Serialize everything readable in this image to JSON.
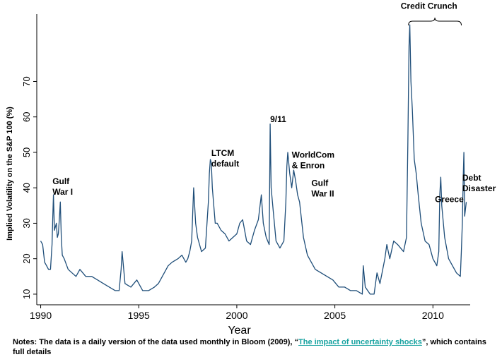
{
  "chart_data": {
    "type": "line",
    "title": "",
    "xlabel": "Year",
    "ylabel": "Implied Volatility on the S&P 100 (%)",
    "xlim": [
      1989.8,
      2011.9
    ],
    "ylim": [
      7,
      89
    ],
    "xticks": [
      1990,
      1995,
      2000,
      2005,
      2010
    ],
    "yticks": [
      10,
      20,
      30,
      40,
      50,
      60,
      70
    ],
    "grid": false,
    "series": [
      {
        "values": [
          [
            1990.0,
            25
          ],
          [
            1990.1,
            24
          ],
          [
            1990.2,
            19
          ],
          [
            1990.3,
            18
          ],
          [
            1990.4,
            17
          ],
          [
            1990.5,
            17
          ],
          [
            1990.58,
            24
          ],
          [
            1990.62,
            32
          ],
          [
            1990.65,
            38
          ],
          [
            1990.7,
            28
          ],
          [
            1990.8,
            30
          ],
          [
            1990.85,
            26
          ],
          [
            1990.9,
            27
          ],
          [
            1990.95,
            31
          ],
          [
            1991.0,
            36
          ],
          [
            1991.05,
            26
          ],
          [
            1991.1,
            21
          ],
          [
            1991.2,
            20
          ],
          [
            1991.4,
            17
          ],
          [
            1991.6,
            16
          ],
          [
            1991.8,
            15
          ],
          [
            1992.0,
            17
          ],
          [
            1992.3,
            15
          ],
          [
            1992.6,
            15
          ],
          [
            1992.9,
            14
          ],
          [
            1993.2,
            13
          ],
          [
            1993.5,
            12
          ],
          [
            1993.8,
            11
          ],
          [
            1994.0,
            11
          ],
          [
            1994.1,
            17
          ],
          [
            1994.15,
            22
          ],
          [
            1994.3,
            13
          ],
          [
            1994.6,
            12
          ],
          [
            1994.9,
            14
          ],
          [
            1995.2,
            11
          ],
          [
            1995.5,
            11
          ],
          [
            1995.8,
            12
          ],
          [
            1996.0,
            13
          ],
          [
            1996.3,
            16
          ],
          [
            1996.5,
            18
          ],
          [
            1996.7,
            19
          ],
          [
            1997.0,
            20
          ],
          [
            1997.2,
            21
          ],
          [
            1997.4,
            19
          ],
          [
            1997.5,
            20
          ],
          [
            1997.6,
            22
          ],
          [
            1997.7,
            25
          ],
          [
            1997.8,
            40
          ],
          [
            1997.9,
            30
          ],
          [
            1998.0,
            26
          ],
          [
            1998.2,
            22
          ],
          [
            1998.4,
            23
          ],
          [
            1998.55,
            36
          ],
          [
            1998.6,
            44
          ],
          [
            1998.65,
            48
          ],
          [
            1998.7,
            47
          ],
          [
            1998.75,
            40
          ],
          [
            1998.9,
            30
          ],
          [
            1999.0,
            30
          ],
          [
            1999.2,
            28
          ],
          [
            1999.4,
            27
          ],
          [
            1999.6,
            25
          ],
          [
            1999.8,
            26
          ],
          [
            2000.0,
            27
          ],
          [
            2000.15,
            30
          ],
          [
            2000.3,
            31
          ],
          [
            2000.5,
            25
          ],
          [
            2000.7,
            24
          ],
          [
            2000.9,
            28
          ],
          [
            2001.1,
            31
          ],
          [
            2001.25,
            38
          ],
          [
            2001.35,
            30
          ],
          [
            2001.5,
            26
          ],
          [
            2001.65,
            24
          ],
          [
            2001.7,
            58
          ],
          [
            2001.75,
            40
          ],
          [
            2001.85,
            34
          ],
          [
            2002.0,
            25
          ],
          [
            2002.2,
            23
          ],
          [
            2002.4,
            25
          ],
          [
            2002.5,
            36
          ],
          [
            2002.55,
            46
          ],
          [
            2002.6,
            50
          ],
          [
            2002.7,
            44
          ],
          [
            2002.8,
            40
          ],
          [
            2002.9,
            45
          ],
          [
            2003.0,
            42
          ],
          [
            2003.1,
            38
          ],
          [
            2003.2,
            36
          ],
          [
            2003.4,
            26
          ],
          [
            2003.6,
            21
          ],
          [
            2003.8,
            19
          ],
          [
            2004.0,
            17
          ],
          [
            2004.3,
            16
          ],
          [
            2004.6,
            15
          ],
          [
            2004.9,
            14
          ],
          [
            2005.2,
            12
          ],
          [
            2005.5,
            12
          ],
          [
            2005.8,
            11
          ],
          [
            2006.1,
            11
          ],
          [
            2006.4,
            10
          ],
          [
            2006.45,
            18
          ],
          [
            2006.55,
            12
          ],
          [
            2006.8,
            10
          ],
          [
            2007.0,
            10
          ],
          [
            2007.15,
            16
          ],
          [
            2007.3,
            13
          ],
          [
            2007.55,
            20
          ],
          [
            2007.65,
            24
          ],
          [
            2007.8,
            20
          ],
          [
            2008.0,
            25
          ],
          [
            2008.2,
            24
          ],
          [
            2008.5,
            22
          ],
          [
            2008.65,
            26
          ],
          [
            2008.72,
            52
          ],
          [
            2008.78,
            80
          ],
          [
            2008.82,
            86
          ],
          [
            2008.88,
            70
          ],
          [
            2008.95,
            62
          ],
          [
            2009.05,
            48
          ],
          [
            2009.15,
            44
          ],
          [
            2009.25,
            38
          ],
          [
            2009.4,
            30
          ],
          [
            2009.6,
            25
          ],
          [
            2009.8,
            24
          ],
          [
            2010.0,
            20
          ],
          [
            2010.2,
            18
          ],
          [
            2010.3,
            22
          ],
          [
            2010.35,
            38
          ],
          [
            2010.4,
            43
          ],
          [
            2010.45,
            35
          ],
          [
            2010.6,
            26
          ],
          [
            2010.8,
            20
          ],
          [
            2011.0,
            18
          ],
          [
            2011.2,
            16
          ],
          [
            2011.4,
            15
          ],
          [
            2011.45,
            22
          ],
          [
            2011.5,
            30
          ],
          [
            2011.55,
            44
          ],
          [
            2011.58,
            50
          ],
          [
            2011.62,
            32
          ],
          [
            2011.7,
            36
          ]
        ]
      }
    ],
    "annotations": [
      {
        "text": [
          "Gulf",
          "War I"
        ],
        "x": 1990.6,
        "y": 41
      },
      {
        "text": [
          "LTCM",
          "default"
        ],
        "x": 1998.7,
        "y": 49
      },
      {
        "text": [
          "9/11"
        ],
        "x": 2001.7,
        "y": 58.5
      },
      {
        "text": [
          "WorldCom",
          "& Enron"
        ],
        "x": 2002.8,
        "y": 48.5
      },
      {
        "text": [
          "Gulf",
          "War II"
        ],
        "x": 2003.8,
        "y": 40.5
      },
      {
        "text": [
          "Credit Crunch"
        ],
        "x": 2009.8,
        "y": 90.5
      },
      {
        "text": [
          "Greece"
        ],
        "x": 2010.1,
        "y": 36
      },
      {
        "text": [
          "Debt",
          "Disaster"
        ],
        "x": 2011.5,
        "y": 42
      }
    ],
    "brace": {
      "x_start": 2008.75,
      "x_end": 2011.45,
      "y": 87
    }
  },
  "notes": {
    "prefix": "Notes: The data is a daily version of the data used monthly in Bloom (2009), “",
    "link": "The impact of uncertainty shocks",
    "suffix": "”, which contains full details"
  }
}
